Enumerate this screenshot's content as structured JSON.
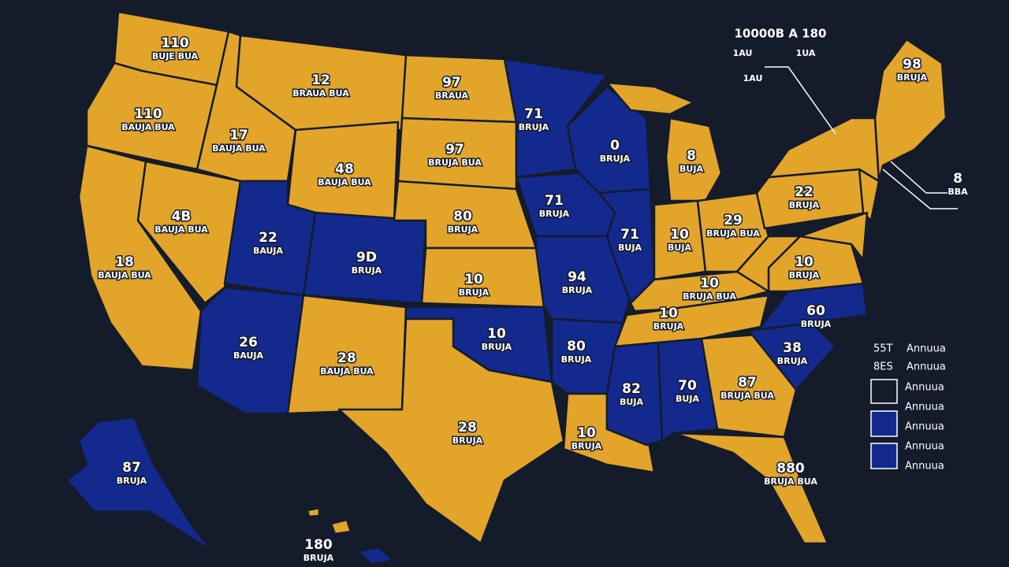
{
  "header": {
    "title": "10000B A 180",
    "left": "1AU",
    "right": "1UA",
    "note": "1AU"
  },
  "states": [
    {
      "number": "110",
      "label": "BUJE BUA"
    },
    {
      "number": "110",
      "label": "BAUJA BUA"
    },
    {
      "number": "12",
      "label": "BRAUA BUA"
    },
    {
      "number": "97",
      "label": "BRAUA"
    },
    {
      "number": "17",
      "label": "BAUJA BUA"
    },
    {
      "number": "48",
      "label": "BAUJA BUA"
    },
    {
      "number": "97",
      "label": "BRUJA BUA"
    },
    {
      "number": "71",
      "label": "BRUJA"
    },
    {
      "number": "0",
      "label": "BRUJA"
    },
    {
      "number": "8",
      "label": "BUJA"
    },
    {
      "number": "4B",
      "label": "BAUJA BUA"
    },
    {
      "number": "22",
      "label": "BAUJA"
    },
    {
      "number": "9D",
      "label": "BRUJA"
    },
    {
      "number": "80",
      "label": "BRUJA"
    },
    {
      "number": "71",
      "label": "BRUJA"
    },
    {
      "number": "71",
      "label": "BUJA"
    },
    {
      "number": "10",
      "label": "BUJA"
    },
    {
      "number": "29",
      "label": "BRUJA BUA"
    },
    {
      "number": "22",
      "label": "BRUJA"
    },
    {
      "number": "18",
      "label": "BAUJA BUA"
    },
    {
      "number": "10",
      "label": "BRUJA"
    },
    {
      "number": "94",
      "label": "BRUJA"
    },
    {
      "number": "10",
      "label": "BRUJA BUA"
    },
    {
      "number": "10",
      "label": "BRUJA"
    },
    {
      "number": "60",
      "label": "BRUJA"
    },
    {
      "number": "10",
      "label": "BRUJA"
    },
    {
      "number": "26",
      "label": "BAUJA"
    },
    {
      "number": "28",
      "label": "BAUJA BUA"
    },
    {
      "number": "10",
      "label": "BRUJA"
    },
    {
      "number": "80",
      "label": "BRUJA"
    },
    {
      "number": "82",
      "label": "BUJA"
    },
    {
      "number": "70",
      "label": "BUJA"
    },
    {
      "number": "87",
      "label": "BRUJA BUA"
    },
    {
      "number": "38",
      "label": "BRUJA"
    },
    {
      "number": "28",
      "label": "BRUJA"
    },
    {
      "number": "10",
      "label": "BRUJA"
    },
    {
      "number": "880",
      "label": "BRUJA BUA"
    },
    {
      "number": "87",
      "label": "BRUJA"
    },
    {
      "number": "180",
      "label": "BRUJA"
    },
    {
      "number": "98",
      "label": "BRUJA"
    },
    {
      "number": "8",
      "label": "BBA"
    }
  ],
  "legend": {
    "rows": [
      {
        "code": "55T",
        "label": "Annuua"
      },
      {
        "code": "8ES",
        "label": "Annuua"
      }
    ],
    "items": [
      "Annuua",
      "Annuua",
      "Annuua",
      "Annuua",
      "Annuua"
    ]
  }
}
